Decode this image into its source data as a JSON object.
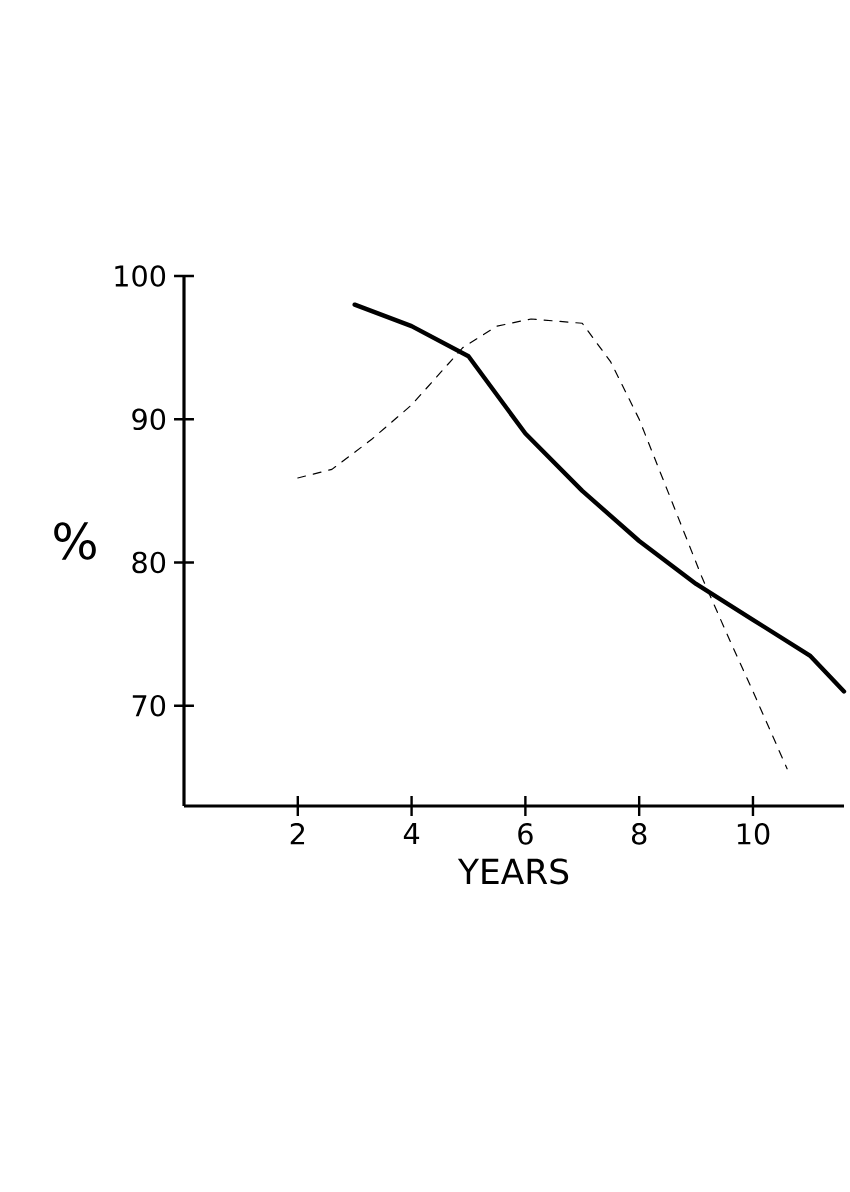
{
  "chart_data": {
    "type": "line",
    "xlabel": "YEARS",
    "ylabel": "%",
    "xlim": [
      0,
      11.6
    ],
    "ylim": [
      63,
      100
    ],
    "xticks": [
      2,
      4,
      6,
      8,
      10
    ],
    "yticks": [
      70,
      80,
      90,
      100
    ],
    "grid": false,
    "marker": "none",
    "series": [
      {
        "color": "#000000",
        "line_style": "solid",
        "x": [
          3,
          4,
          5,
          6,
          7,
          8,
          9,
          10,
          11,
          11.6
        ],
        "values": [
          98,
          96.5,
          94.4,
          89,
          85,
          81.5,
          78.5,
          76,
          73.5,
          71
        ]
      },
      {
        "color": "#000000",
        "line_style": "dashed",
        "x": [
          2,
          2.6,
          3.3,
          4,
          4.9,
          5.5,
          6.1,
          7,
          7.5,
          8,
          8.5,
          9.1,
          9.6,
          10,
          10.6
        ],
        "values": [
          85.9,
          86.5,
          88.6,
          91,
          95,
          96.5,
          97,
          96.7,
          94,
          90,
          85,
          79,
          74.5,
          71,
          65.6
        ]
      }
    ]
  }
}
